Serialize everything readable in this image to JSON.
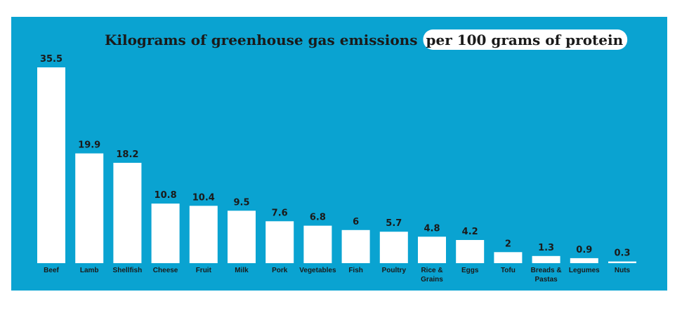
{
  "colors": {
    "background": "#0aa3d1",
    "bar": "#ffffff",
    "highlight": "#ffffff"
  },
  "chart_data": {
    "type": "bar",
    "title": "Kilograms of greenhouse gas emissions",
    "title_highlight": "per 100 grams of protein",
    "xlabel": "",
    "ylabel": "",
    "grid": false,
    "ylim": [
      0,
      35.5
    ],
    "categories": [
      "Beef",
      "Lamb",
      "Shellfish",
      "Cheese",
      "Fruit",
      "Milk",
      "Pork",
      "Vegetables",
      "Fish",
      "Poultry",
      "Rice & Grains",
      "Eggs",
      "Tofu",
      "Breads & Pastas",
      "Legumes",
      "Nuts"
    ],
    "values": [
      35.5,
      19.9,
      18.2,
      10.8,
      10.4,
      9.5,
      7.6,
      6.8,
      6,
      5.7,
      4.8,
      4.2,
      2,
      1.3,
      0.9,
      0.3
    ],
    "value_labels": [
      "35.5",
      "19.9",
      "18.2",
      "10.8",
      "10.4",
      "9.5",
      "7.6",
      "6.8",
      "6",
      "5.7",
      "4.8",
      "4.2",
      "2",
      "1.3",
      "0.9",
      "0.3"
    ]
  }
}
